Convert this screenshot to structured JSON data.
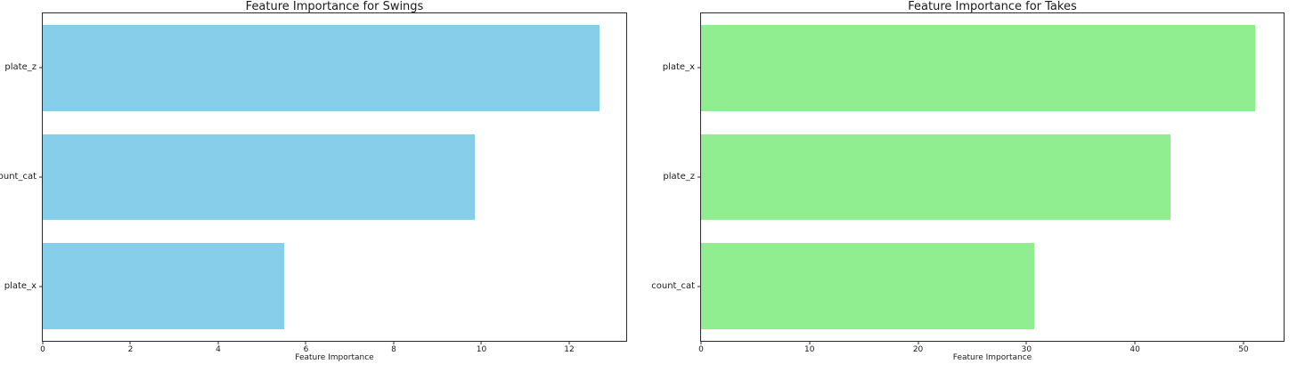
{
  "figure": {
    "background_color": "#ffffff",
    "spine_color": "#2b2b2b",
    "text_color": "#1a1a1a"
  },
  "chart_data": [
    {
      "type": "bar",
      "orientation": "horizontal",
      "title": "Feature Importance for Swings",
      "categories": [
        "plate_z",
        "count_cat",
        "plate_x"
      ],
      "values": [
        12.7,
        9.85,
        5.5
      ],
      "xlabel": "Feature Importance",
      "ylabel": "",
      "xlim": [
        0,
        13.3
      ],
      "xticks": [
        0,
        2,
        4,
        6,
        8,
        10,
        12
      ],
      "bar_color": "#87ceeb",
      "grid": false,
      "legend": null
    },
    {
      "type": "bar",
      "orientation": "horizontal",
      "title": "Feature Importance for Takes",
      "categories": [
        "plate_x",
        "plate_z",
        "count_cat"
      ],
      "values": [
        51.1,
        43.3,
        30.7
      ],
      "xlabel": "Feature Importance",
      "ylabel": "",
      "xlim": [
        0,
        53.7
      ],
      "xticks": [
        0,
        10,
        20,
        30,
        40,
        50
      ],
      "bar_color": "#90ee90",
      "grid": false,
      "legend": null
    }
  ]
}
